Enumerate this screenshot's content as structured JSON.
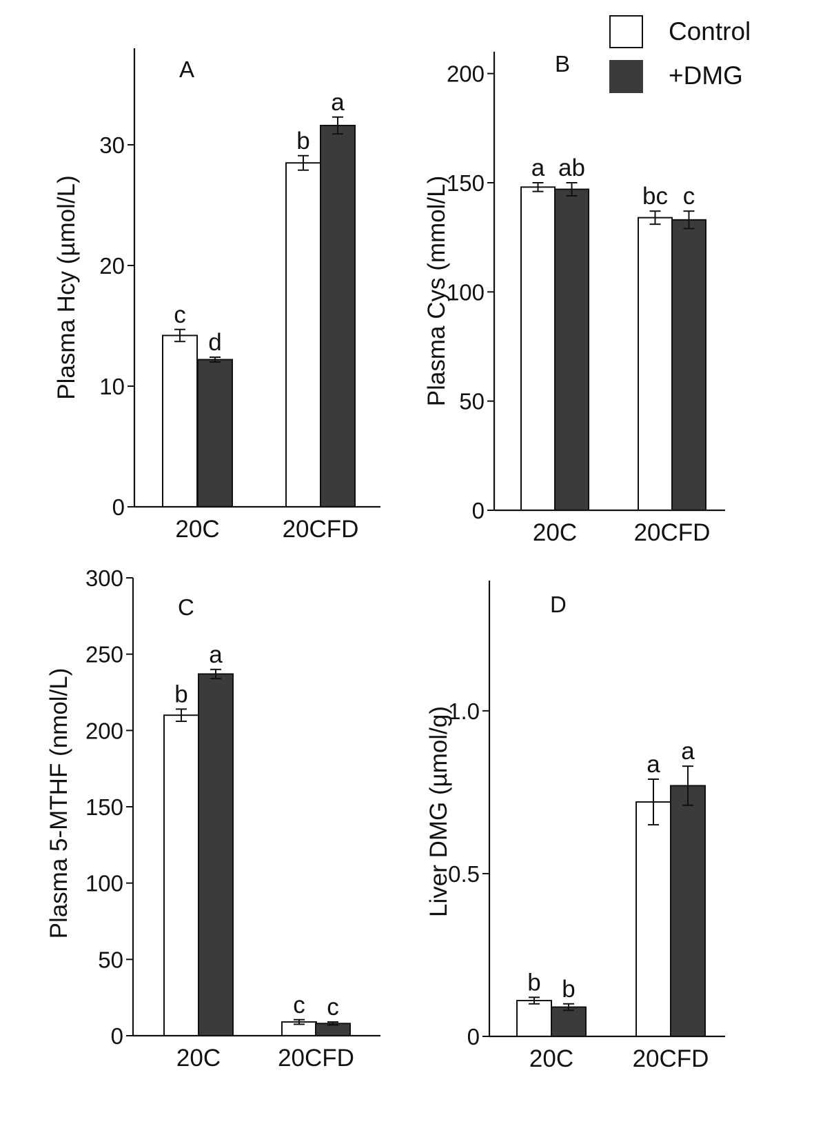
{
  "legend": {
    "items": [
      {
        "label": "Control",
        "color": "#ffffff"
      },
      {
        "label": "+DMG",
        "color": "#3b3b3b"
      }
    ]
  },
  "chart_data": [
    {
      "type": "bar",
      "panel": "A",
      "categories": [
        "20C",
        "20CFD"
      ],
      "ylabel": "Plasma Hcy (µmol/L)",
      "ylim": [
        0,
        38
      ],
      "yticks": [
        0,
        10,
        20,
        30
      ],
      "series": [
        {
          "name": "Control",
          "color": "#ffffff",
          "values": [
            14.2,
            28.5
          ],
          "errors": [
            0.5,
            0.6
          ],
          "letters": [
            "c",
            "b"
          ]
        },
        {
          "name": "+DMG",
          "color": "#3b3b3b",
          "values": [
            12.2,
            31.6
          ],
          "errors": [
            0.2,
            0.7
          ],
          "letters": [
            "d",
            "a"
          ]
        }
      ]
    },
    {
      "type": "bar",
      "panel": "B",
      "categories": [
        "20C",
        "20CFD"
      ],
      "ylabel": "Plasma Cys (mmol/L)",
      "ylim": [
        0,
        210
      ],
      "yticks": [
        0,
        50,
        100,
        150,
        200
      ],
      "series": [
        {
          "name": "Control",
          "color": "#ffffff",
          "values": [
            148,
            134
          ],
          "errors": [
            2,
            3
          ],
          "letters": [
            "a",
            "bc"
          ]
        },
        {
          "name": "+DMG",
          "color": "#3b3b3b",
          "values": [
            147,
            133
          ],
          "errors": [
            3,
            4
          ],
          "letters": [
            "ab",
            "c"
          ]
        }
      ]
    },
    {
      "type": "bar",
      "panel": "C",
      "categories": [
        "20C",
        "20CFD"
      ],
      "ylabel": "Plasma 5-MTHF (nmol/L)",
      "ylim": [
        0,
        300
      ],
      "yticks": [
        0,
        50,
        100,
        150,
        200,
        250,
        300
      ],
      "series": [
        {
          "name": "Control",
          "color": "#ffffff",
          "values": [
            210,
            9
          ],
          "errors": [
            4,
            1.5
          ],
          "letters": [
            "b",
            "c"
          ]
        },
        {
          "name": "+DMG",
          "color": "#3b3b3b",
          "values": [
            237,
            8
          ],
          "errors": [
            3,
            1
          ],
          "letters": [
            "a",
            "c"
          ]
        }
      ]
    },
    {
      "type": "bar",
      "panel": "D",
      "categories": [
        "20C",
        "20CFD"
      ],
      "ylabel": "Liver DMG (µmol/g)",
      "ylim": [
        0,
        1.4
      ],
      "yticks": [
        0,
        0.5,
        1.0
      ],
      "yticklabels": [
        "0",
        "0.5",
        "1.0"
      ],
      "series": [
        {
          "name": "Control",
          "color": "#ffffff",
          "values": [
            0.11,
            0.72
          ],
          "errors": [
            0.01,
            0.07
          ],
          "letters": [
            "b",
            "a"
          ]
        },
        {
          "name": "+DMG",
          "color": "#3b3b3b",
          "values": [
            0.09,
            0.77
          ],
          "errors": [
            0.01,
            0.06
          ],
          "letters": [
            "b",
            "a"
          ]
        }
      ]
    }
  ]
}
